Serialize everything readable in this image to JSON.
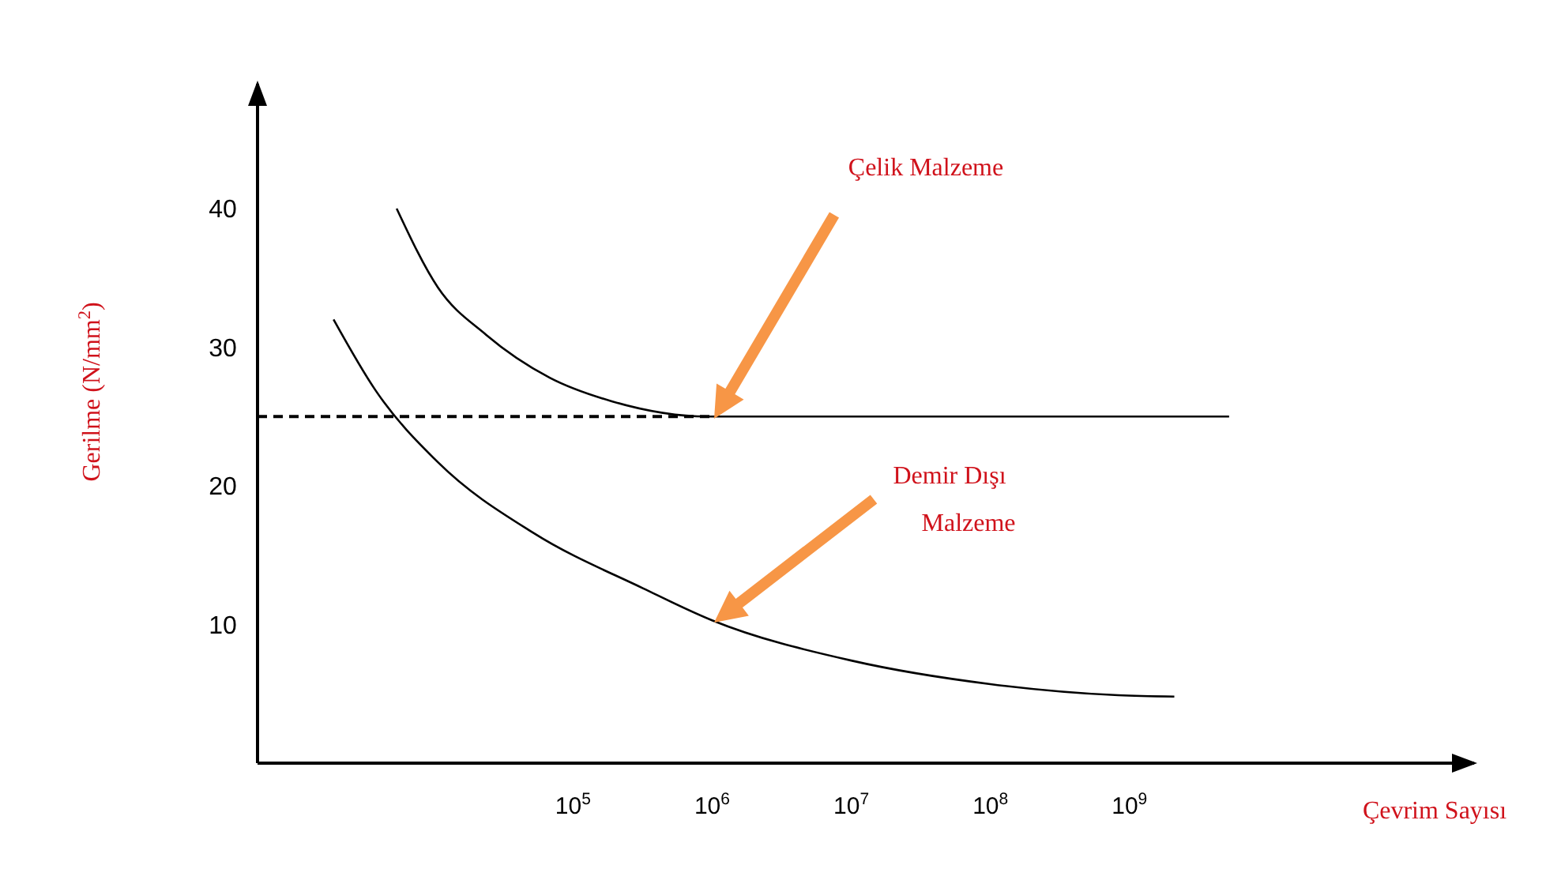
{
  "chart_data": {
    "type": "line",
    "xlabel": "Çevrim Sayısı",
    "ylabel": "Gerilme (N/mm$^{2}$)",
    "log": "x",
    "grid": false,
    "marker": "none",
    "xlim": [
      540,
      300000000000
    ],
    "ylim": [
      0,
      49
    ],
    "xticks": [
      {
        "value": 100000,
        "label": "10$^{5}$"
      },
      {
        "value": 1000000,
        "label": "10$^{6}$"
      },
      {
        "value": 10000000,
        "label": "10$^{7}$"
      },
      {
        "value": 100000000,
        "label": "10$^{8}$"
      },
      {
        "value": 1000000000,
        "label": "10$^{9}$"
      }
    ],
    "yticks": [
      10,
      20,
      30,
      40
    ],
    "series": [
      {
        "color": "#000000",
        "line_style": "solid",
        "x": [
          5400,
          10700,
          23700,
          68000,
          190000,
          930000,
          5000000,
          5200000000
        ],
        "values": [
          40,
          34.3,
          30.9,
          27.8,
          26.1,
          25,
          25,
          25
        ]
      },
      {
        "color": "#000000",
        "line_style": "dashed",
        "x": [
          540,
          1000000
        ],
        "values": [
          25,
          25
        ]
      },
      {
        "color": "#000000",
        "line_style": "solid",
        "x": [
          1900,
          3800,
          10700,
          52000,
          320000,
          1000000,
          10000000,
          100000000,
          830000000,
          2100000000
        ],
        "values": [
          32,
          26.9,
          21.7,
          16.6,
          12.6,
          10.3,
          7.4,
          5.7,
          4.9,
          4.8
        ]
      }
    ],
    "annotations": [
      "Çelik Malzeme",
      "Demir Dışı\nMalzeme"
    ]
  }
}
